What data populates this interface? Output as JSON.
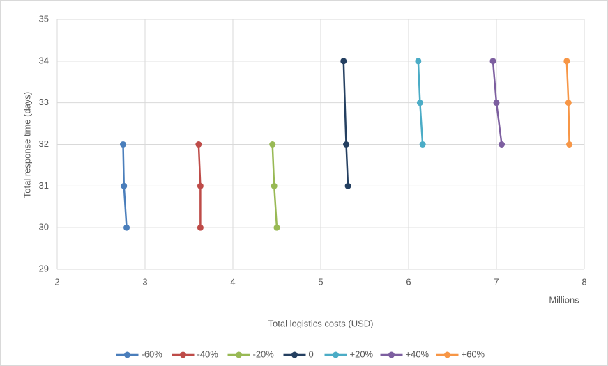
{
  "chart_data": {
    "type": "line",
    "x_label": "Total logistics costs (USD)",
    "x_unit_label": "Millions",
    "y_label": "Total response time (days)",
    "xlim": [
      2,
      8
    ],
    "xticks": [
      2,
      3,
      4,
      5,
      6,
      7,
      8
    ],
    "ylim": [
      29,
      35
    ],
    "yticks": [
      29,
      30,
      31,
      32,
      33,
      34,
      35
    ],
    "grid": true,
    "legend": "bottom",
    "series": [
      {
        "name": "-60%",
        "color": "#4a7ebb",
        "x": [
          2.75,
          2.76,
          2.79
        ],
        "values": [
          32,
          31,
          30
        ]
      },
      {
        "name": "-40%",
        "color": "#be4b48",
        "x": [
          3.61,
          3.63,
          3.63
        ],
        "values": [
          32,
          31,
          30
        ]
      },
      {
        "name": "-20%",
        "color": "#98b954",
        "x": [
          4.45,
          4.47,
          4.5
        ],
        "values": [
          32,
          31,
          30
        ]
      },
      {
        "name": "0",
        "color": "#243f60",
        "x": [
          5.26,
          5.29,
          5.31
        ],
        "values": [
          34,
          32,
          31
        ]
      },
      {
        "name": "+20%",
        "color": "#4bacc6",
        "x": [
          6.11,
          6.13,
          6.16
        ],
        "values": [
          34,
          33,
          32
        ]
      },
      {
        "name": "+40%",
        "color": "#7d5fa0",
        "x": [
          6.96,
          7.0,
          7.06
        ],
        "values": [
          34,
          33,
          32
        ]
      },
      {
        "name": "+60%",
        "color": "#f79646",
        "x": [
          7.8,
          7.82,
          7.83
        ],
        "values": [
          34,
          33,
          32
        ]
      }
    ]
  }
}
